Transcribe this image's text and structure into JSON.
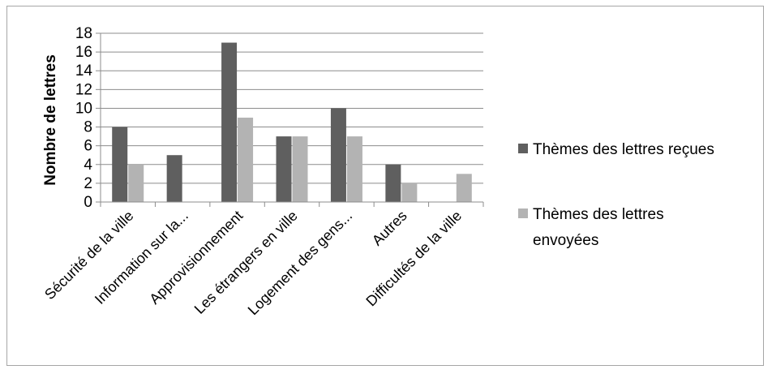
{
  "chart_data": {
    "type": "bar",
    "title": "",
    "ylabel": "Nombre de lettres",
    "xlabel": "",
    "ylim": [
      0,
      18
    ],
    "yticks": [
      0,
      2,
      4,
      6,
      8,
      10,
      12,
      14,
      16,
      18
    ],
    "grid": true,
    "legend_position": "right",
    "categories": [
      "Sécurité de la ville",
      "Information sur la...",
      "Approvisionnement",
      "Les étrangers en ville",
      "Logement des gens...",
      "Autres",
      "Difficultés de la ville"
    ],
    "series": [
      {
        "name": "Thèmes des lettres reçues",
        "color": "#5f5f5f",
        "values": [
          8,
          5,
          17,
          7,
          10,
          4,
          0
        ]
      },
      {
        "name": "Thèmes des lettres envoyées",
        "color": "#b3b3b3",
        "values": [
          4,
          0,
          9,
          7,
          7,
          2,
          3
        ]
      }
    ],
    "legend": {
      "received_label": "Thèmes des lettres reçues",
      "sent_label_line1": "Thèmes des lettres",
      "sent_label_line2": "envoyées"
    }
  }
}
